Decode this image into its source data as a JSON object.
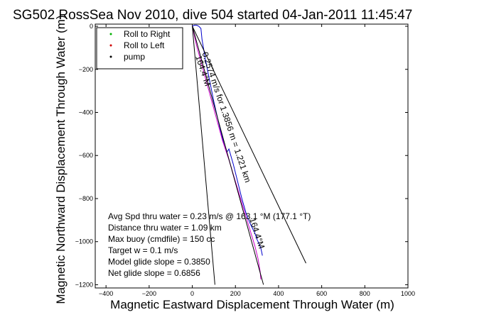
{
  "chart_data": {
    "type": "line",
    "title": "SG502 RossSea Nov 2010, dive 504 started 04-Jan-2011 11:45:47",
    "xlabel": "Magnetic Eastward Displacement Through Water (m)",
    "ylabel": "Magnetic Northward Displacement Through Water (m)",
    "xlim": [
      -450,
      1000
    ],
    "ylim": [
      -1215,
      10
    ],
    "xticks": [
      -400,
      -200,
      0,
      200,
      400,
      600,
      800,
      1000
    ],
    "yticks": [
      0,
      -200,
      -400,
      -600,
      -800,
      -1000,
      -1200
    ],
    "xtick_labels": [
      "−400",
      "−200",
      "0",
      "200",
      "400",
      "600",
      "800",
      "1000"
    ],
    "ytick_labels": [
      "0",
      "−200",
      "−400",
      "−600",
      "−800",
      "−1000",
      "−1200"
    ],
    "grid": false,
    "legend_position": "top-left",
    "legend": [
      {
        "label": "Roll to Right",
        "color": "#00b000",
        "marker": "dot"
      },
      {
        "label": "Roll to Left",
        "color": "#d00000",
        "marker": "dot"
      },
      {
        "label": "pump",
        "color": "#000000",
        "marker": "dot"
      }
    ],
    "series": [
      {
        "color": "#0000cc",
        "x": [
          0,
          10,
          20,
          30,
          40,
          45,
          60,
          80,
          100,
          125,
          150,
          160,
          170,
          190,
          210,
          230,
          250,
          270,
          290,
          300,
          310,
          318,
          322,
          325
        ],
        "y": [
          0,
          5,
          5,
          0,
          -10,
          -60,
          -150,
          -250,
          -350,
          -460,
          -560,
          -585,
          -570,
          -640,
          -720,
          -800,
          -870,
          -920,
          -960,
          -990,
          -1010,
          -1030,
          -1050,
          -1065
        ]
      },
      {
        "color": "#cc00cc",
        "x": [
          0,
          20,
          50,
          80,
          110,
          140,
          170,
          200,
          230,
          260,
          290,
          305,
          315,
          318
        ],
        "y": [
          0,
          -90,
          -200,
          -310,
          -420,
          -530,
          -620,
          -720,
          -820,
          -920,
          -1020,
          -1080,
          -1140,
          -1175
        ]
      },
      {
        "color": "#000000",
        "x": [
          0,
          527
        ],
        "y": [
          0,
          -1100
        ]
      },
      {
        "color": "#000000",
        "x": [
          0,
          105
        ],
        "y": [
          0,
          -1200
        ]
      },
      {
        "color": "#000000",
        "x": [
          0,
          330
        ],
        "y": [
          0,
          -1200
        ]
      }
    ],
    "line_labels": [
      {
        "text": "0.2574 m/s for 1.3856 m = 1.221 km",
        "x": 45,
        "y": -125,
        "angle": 71.5
      },
      {
        "text": "164.4°M",
        "x": 15,
        "y": -140,
        "angle": 72
      },
      {
        "text": "164.4°M",
        "x": 265,
        "y": -895,
        "angle": 72
      }
    ],
    "annotations": [
      "Avg Spd thru water =  0.23 m/s @ 163.1   °M (177.1 °T)",
      "Distance thru water = 1.09 km",
      "Max buoy (cmdfile) = 150 cc",
      "Target w = 0.1 m/s",
      "Model glide slope = 0.3850",
      "Net glide slope = 0.6856"
    ]
  }
}
